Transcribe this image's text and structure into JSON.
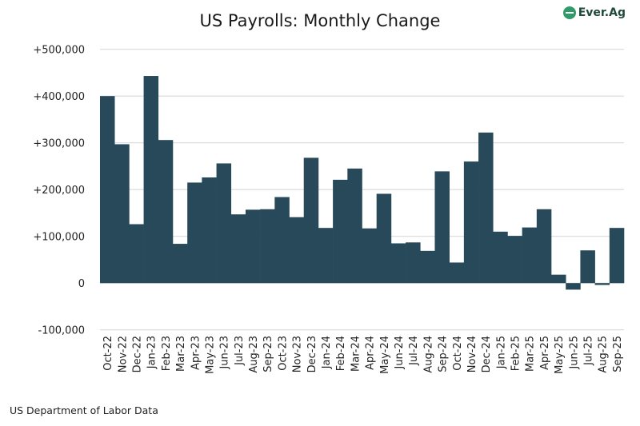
{
  "chart_data": {
    "type": "bar",
    "title": "US Payrolls: Monthly Change",
    "source": "US Department of Labor Data",
    "logo_text": "Ever.Ag",
    "bar_color": "#27495a",
    "grid": true,
    "ylim": [
      -100000,
      500000
    ],
    "yticks": [
      500000,
      400000,
      300000,
      200000,
      100000,
      0,
      -100000
    ],
    "ytick_labels": [
      "+500,000",
      "+400,000",
      "+300,000",
      "+200,000",
      "+100,000",
      "0",
      "-100,000"
    ],
    "categories": [
      "Oct-22",
      "Nov-22",
      "Dec-22",
      "Jan-23",
      "Feb-23",
      "Mar-23",
      "Apr-23",
      "May-23",
      "Jun-23",
      "Jul-23",
      "Aug-23",
      "Sep-23",
      "Oct-23",
      "Nov-23",
      "Dec-23",
      "Jan-24",
      "Feb-24",
      "Mar-24",
      "Apr-24",
      "May-24",
      "Jun-24",
      "Jul-24",
      "Aug-24",
      "Sep-24",
      "Oct-24",
      "Nov-24",
      "Dec-24",
      "Jan-25",
      "Feb-25",
      "Mar-25",
      "Apr-25",
      "May-25",
      "Jun-25",
      "Jul-25",
      "Aug-25",
      "Sep-25"
    ],
    "values": [
      400000,
      297000,
      126000,
      443000,
      306000,
      84000,
      215000,
      226000,
      256000,
      147000,
      157000,
      158000,
      184000,
      141000,
      268000,
      118000,
      221000,
      245000,
      117000,
      191000,
      85000,
      87000,
      69000,
      239000,
      44000,
      260000,
      322000,
      110000,
      101000,
      119000,
      158000,
      18000,
      -14000,
      70000,
      -4000,
      118000
    ]
  }
}
